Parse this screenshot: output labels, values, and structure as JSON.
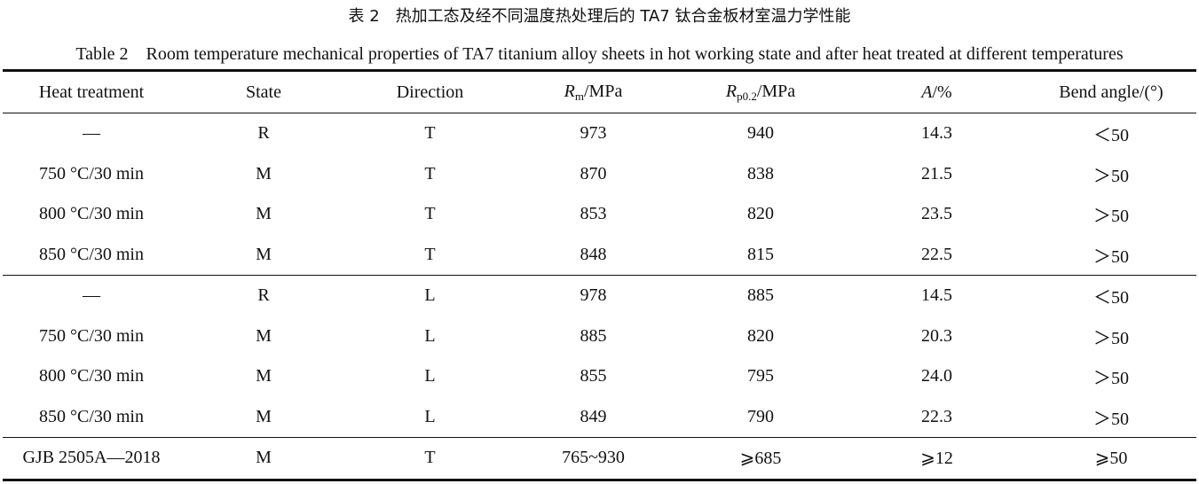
{
  "caption": {
    "cn": "表 2　热加工态及经不同温度热处理后的 TA7 钛合金板材室温力学性能",
    "en": "Table 2　Room temperature mechanical properties of TA7 titanium alloy sheets in hot working state and after heat treated at different temperatures"
  },
  "headers": {
    "heat": "Heat treatment",
    "state": "State",
    "direction": "Direction",
    "rm_sym": "R",
    "rm_sub": "m",
    "rm_unit": "/MPa",
    "rp_sym": "R",
    "rp_sub": "p0.2",
    "rp_unit": "/MPa",
    "a_sym": "A",
    "a_unit": "/%",
    "bend": "Bend angle/(°)"
  },
  "rows": [
    [
      "—",
      "R",
      "T",
      "973",
      "940",
      "14.3",
      "＜50"
    ],
    [
      "750 °C/30 min",
      "M",
      "T",
      "870",
      "838",
      "21.5",
      "＞50"
    ],
    [
      "800 °C/30 min",
      "M",
      "T",
      "853",
      "820",
      "23.5",
      "＞50"
    ],
    [
      "850 °C/30 min",
      "M",
      "T",
      "848",
      "815",
      "22.5",
      "＞50"
    ],
    [
      "—",
      "R",
      "L",
      "978",
      "885",
      "14.5",
      "＜50"
    ],
    [
      "750 °C/30 min",
      "M",
      "L",
      "885",
      "820",
      "20.3",
      "＞50"
    ],
    [
      "800 °C/30 min",
      "M",
      "L",
      "855",
      "795",
      "24.0",
      "＞50"
    ],
    [
      "850 °C/30 min",
      "M",
      "L",
      "849",
      "790",
      "22.3",
      "＞50"
    ],
    [
      "GJB 2505A—2018",
      "M",
      "T",
      "765~930",
      "⩾685",
      "⩾12",
      "⩾50"
    ]
  ]
}
